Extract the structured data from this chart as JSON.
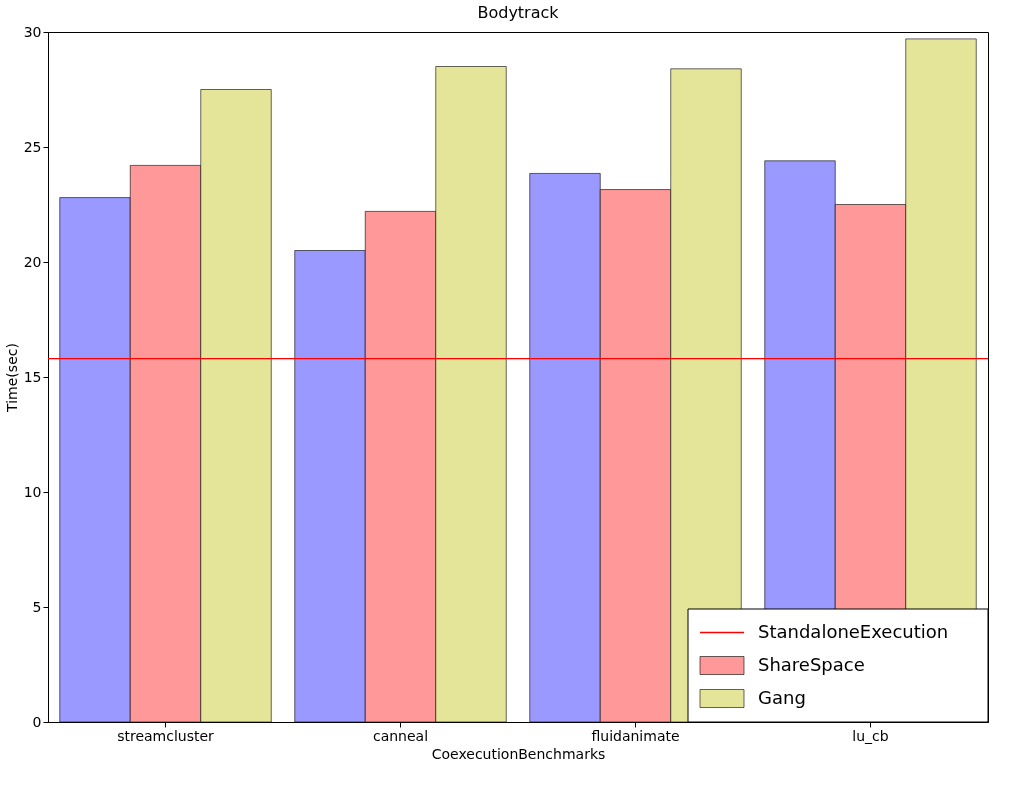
{
  "chart_data": {
    "type": "bar",
    "title": "Bodytrack",
    "xlabel": "CoexecutionBenchmarks",
    "ylabel": "Time(sec)",
    "categories": [
      "streamcluster",
      "canneal",
      "fluidanimate",
      "lu_cb"
    ],
    "series": [
      {
        "color": "#9999ff",
        "values": [
          22.8,
          20.5,
          23.85,
          24.4
        ]
      },
      {
        "name": "ShareSpace",
        "color": "#ff9999",
        "values": [
          24.2,
          22.2,
          23.15,
          22.5
        ]
      },
      {
        "name": "Gang",
        "color": "#e5e599",
        "values": [
          27.5,
          28.5,
          28.4,
          29.7
        ]
      }
    ],
    "ylim": [
      0,
      30
    ],
    "yticks": [
      0,
      5,
      10,
      15,
      20,
      25,
      30
    ],
    "grid": false,
    "legend": "bottom right",
    "ref_lines": [
      {
        "axis": "y",
        "value": 15.8,
        "label": "StandaloneExecution",
        "color": "#ff0000"
      }
    ]
  }
}
